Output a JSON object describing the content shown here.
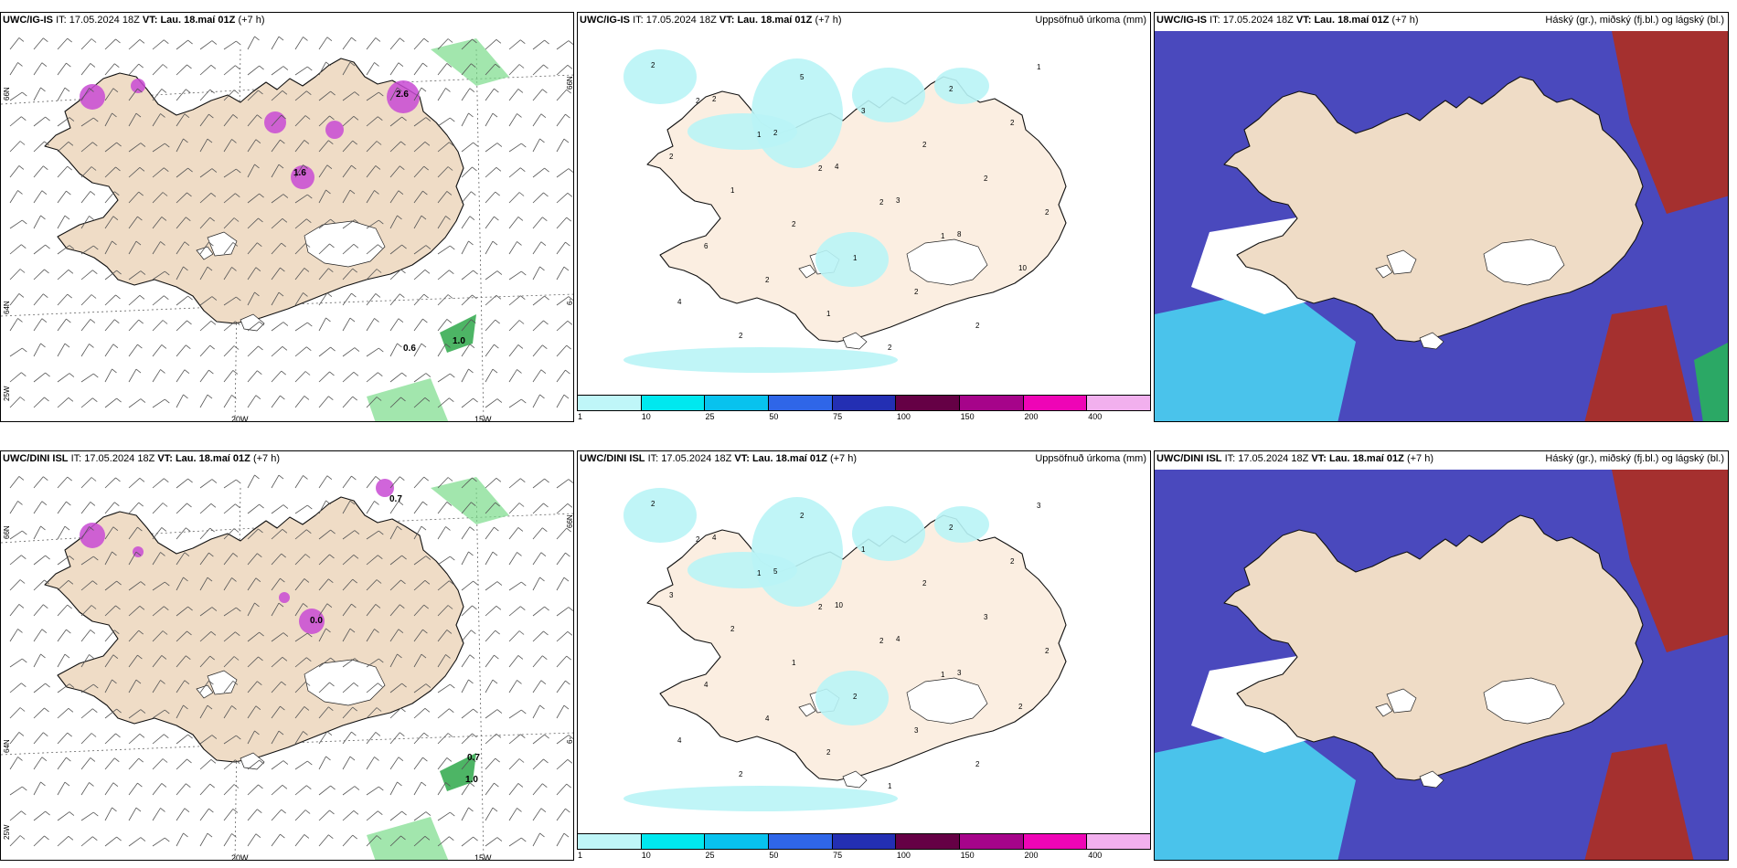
{
  "models": [
    {
      "id_label": "UWC/IG-IS",
      "it_prefix": "IT:",
      "it_value": "17.05.2024 18Z",
      "vt_prefix": "VT:",
      "vt_value": "Lau. 18.maí 01Z",
      "lead": "(+7 h)",
      "precip_title": "Uppsöfnuð úrkoma (mm)",
      "cloud_title": "Háský (gr.), miðský (fj.bl.) og lágský (bl.)",
      "wind_labels": [
        "2.6",
        "0.6",
        "1.6",
        "1.0"
      ],
      "precip_numbers": [
        "2",
        "2",
        "2",
        "4",
        "3",
        "8",
        "10",
        "4",
        "2",
        "5",
        "3",
        "2",
        "2",
        "2",
        "6",
        "2",
        "1",
        "2",
        "2",
        "2",
        "2",
        "1",
        "2",
        "1",
        "2",
        "2",
        "1",
        "2",
        "1",
        "2",
        "2",
        "1"
      ]
    },
    {
      "id_label": "UWC/DINI ISL",
      "it_prefix": "IT:",
      "it_value": "17.05.2024 18Z",
      "vt_prefix": "VT:",
      "vt_value": "Lau. 18.maí 01Z",
      "lead": "(+7 h)",
      "precip_title": "Uppsöfnuð úrkoma (mm)",
      "cloud_title": "Háský (gr.), miðský (fj.bl.) og lágský (bl.)",
      "wind_labels": [
        "0.7",
        "1.0",
        "0.0",
        "0.7"
      ],
      "precip_numbers": [
        "2",
        "4",
        "5",
        "10",
        "4",
        "3",
        "2",
        "4",
        "2",
        "2",
        "1",
        "2",
        "3",
        "2",
        "4",
        "4",
        "2",
        "1",
        "2",
        "2",
        "3",
        "2",
        "1",
        "2",
        "3",
        "2",
        "3",
        "2",
        "1",
        "2",
        "2",
        "1"
      ]
    }
  ],
  "axes": {
    "lon_labels": [
      "20W",
      "15W"
    ],
    "lat_labels": [
      "66N",
      "64N",
      "25W",
      "6-"
    ]
  },
  "precip_scale": {
    "ticks": [
      "1",
      "10",
      "25",
      "50",
      "75",
      "100",
      "150",
      "200",
      "400"
    ],
    "colors": [
      "#bff6f8",
      "#00e8ef",
      "#08c2ee",
      "#2f66e8",
      "#232fb3",
      "#650045",
      "#a6048a",
      "#ee05b6",
      "#f2b0ee"
    ]
  },
  "colors": {
    "land": "#efdcc6",
    "land_light": "#fbeee1",
    "precip_light": "#b9f4f6",
    "cloud_high": "#a5302f",
    "cloud_mid": "#4a49bd",
    "cloud_low": "#4ad0f0",
    "green": "#7bdc8a",
    "purple": "#c84ad4"
  }
}
